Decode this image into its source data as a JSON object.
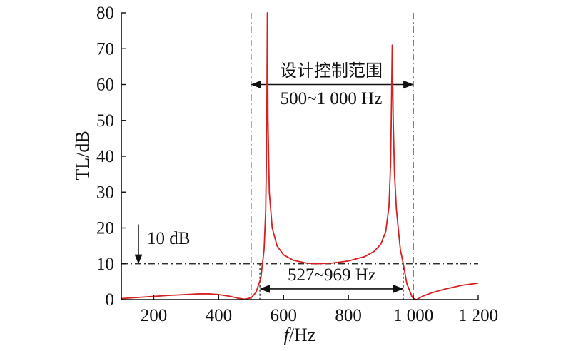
{
  "chart_data": {
    "type": "line",
    "xlabel_italic": "f",
    "xlabel_unit": "/Hz",
    "ylabel": "TL/dB",
    "xlim": [
      100,
      1200
    ],
    "ylim": [
      0,
      80
    ],
    "x_ticks": [
      200,
      400,
      600,
      800,
      1000,
      1200
    ],
    "x_tick_labels": [
      "200",
      "400",
      "600",
      "800",
      "1 000",
      "1 200"
    ],
    "y_ticks": [
      0,
      10,
      20,
      30,
      40,
      50,
      60,
      70,
      80
    ],
    "y_tick_labels": [
      "0",
      "10",
      "20",
      "30",
      "40",
      "50",
      "60",
      "70",
      "80"
    ],
    "series": [
      {
        "color": "#d42020",
        "points": [
          [
            100,
            0.3
          ],
          [
            150,
            0.6
          ],
          [
            200,
            0.9
          ],
          [
            250,
            1.2
          ],
          [
            300,
            1.4
          ],
          [
            340,
            1.6
          ],
          [
            370,
            1.6
          ],
          [
            400,
            1.4
          ],
          [
            430,
            1.0
          ],
          [
            460,
            0.4
          ],
          [
            480,
            0.1
          ],
          [
            500,
            0.5
          ],
          [
            515,
            2.0
          ],
          [
            530,
            6.0
          ],
          [
            540,
            14.0
          ],
          [
            545,
            25.0
          ],
          [
            548,
            45.0
          ],
          [
            550,
            80.0
          ],
          [
            552,
            50.0
          ],
          [
            556,
            30.0
          ],
          [
            565,
            20.0
          ],
          [
            580,
            15.0
          ],
          [
            600,
            12.5
          ],
          [
            630,
            11.0
          ],
          [
            670,
            10.2
          ],
          [
            700,
            10.0
          ],
          [
            750,
            10.2
          ],
          [
            800,
            10.8
          ],
          [
            850,
            12.0
          ],
          [
            880,
            13.5
          ],
          [
            900,
            15.5
          ],
          [
            915,
            19.0
          ],
          [
            925,
            26.0
          ],
          [
            930,
            38.0
          ],
          [
            932,
            50.0
          ],
          [
            935,
            71.0
          ],
          [
            938,
            50.0
          ],
          [
            942,
            35.0
          ],
          [
            948,
            25.0
          ],
          [
            960,
            14.0
          ],
          [
            969,
            10.0
          ],
          [
            980,
            4.5
          ],
          [
            995,
            1.0
          ],
          [
            1000,
            0.3
          ],
          [
            1010,
            0.0
          ],
          [
            1030,
            1.0
          ],
          [
            1060,
            2.0
          ],
          [
            1100,
            3.0
          ],
          [
            1150,
            4.0
          ],
          [
            1200,
            4.6
          ]
        ]
      }
    ],
    "reference_line": {
      "y": 10,
      "label": "10 dB"
    },
    "design_range": {
      "x": [
        500,
        1000
      ],
      "label_top": "设计控制范围",
      "label_bottom": "500~1 000 Hz"
    },
    "effective_range": {
      "x": [
        527,
        969
      ],
      "label": "527~969 Hz"
    },
    "colors": {
      "curve": "#d42020",
      "design_lines": "#3a4fa8",
      "axes": "#111111"
    },
    "grid": false
  }
}
